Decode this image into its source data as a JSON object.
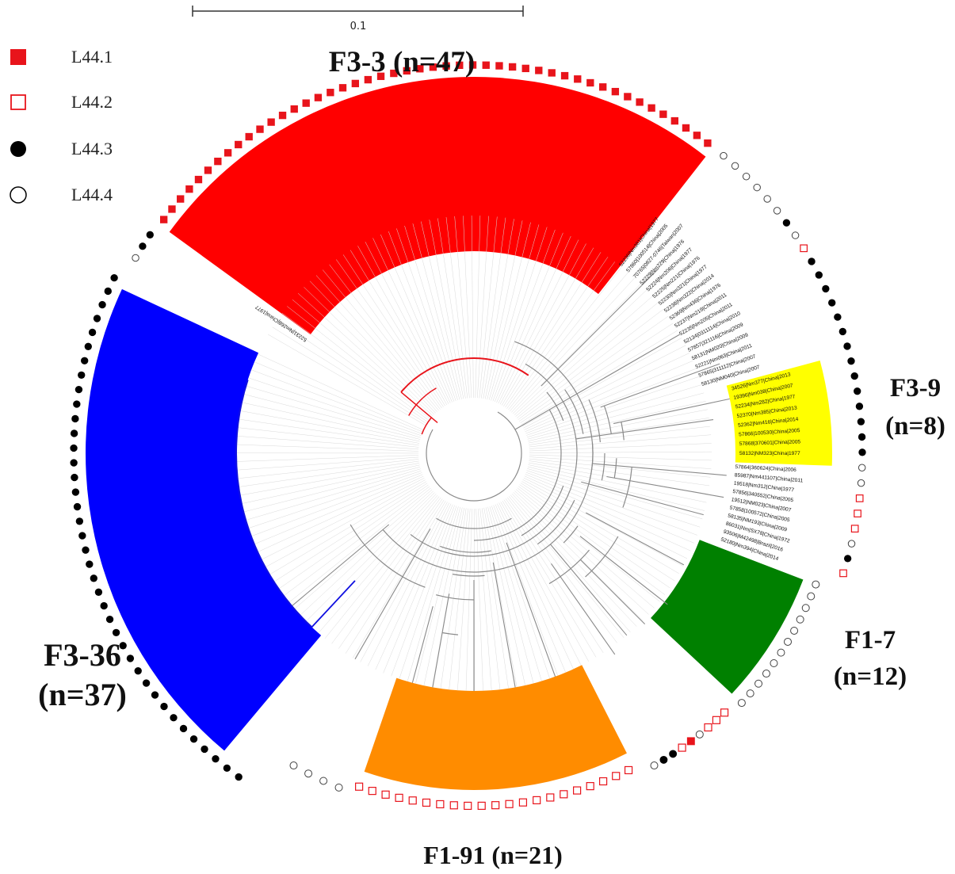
{
  "scale_bar": {
    "label": "0.1"
  },
  "legend": [
    {
      "label": "L44.1",
      "icon": "filled-square",
      "color": "#e8141b"
    },
    {
      "label": "L44.2",
      "icon": "hollow-square",
      "color": "#e8141b"
    },
    {
      "label": "L44.3",
      "icon": "filled-circle",
      "color": "#000000"
    },
    {
      "label": "L44.4",
      "icon": "hollow-circle",
      "color": "#000000"
    }
  ],
  "clades": [
    {
      "name": "F3-3",
      "count": "(n=47)",
      "color": "#ff0000"
    },
    {
      "name": "F3-9",
      "count": "(n=8)",
      "color": "#ffff00"
    },
    {
      "name": "F1-7",
      "count": "(n=12)",
      "color": "#008000"
    },
    {
      "name": "F1-91",
      "count": "(n=21)",
      "color": "#ff8c00"
    },
    {
      "name": "F3-36",
      "count": "(n=37)",
      "color": "#0000ff"
    }
  ],
  "tip_labels": {
    "upper_right": [
      "52236|Nm381|China|1977",
      "57860|100514|China|2005",
      "70765|0827-0746|Taiwan|2007",
      "52229|Nm229|China|1976",
      "52224|Nm206|China|1977",
      "52225|Nm221|China|1976",
      "52230|Nm321|China|1977",
      "52238|Nm322|China|2014",
      "52369|Nm436|China|1976",
      "52237|Nm219|China|2011",
      "52235|Nm205|China|2011",
      "52134|0311114|China|2010",
      "57857|321116|China|2009",
      "58131|NM020|China|2009",
      "52221|Nm063|China|2011",
      "57865|311112|China|2007",
      "58130|NM040|China|2007"
    ],
    "f3_9": [
      "34526|Nm377|China|2013",
      "19396|Nm038|China|2007",
      "52234|Nm282|China|1977",
      "52370|Nm385|China|2013",
      "52362|Nm416|China|2014",
      "57866|100530|China|2005",
      "57868|370601|China|2005",
      "58132|NM323|China|1977"
    ],
    "lower_right": [
      "57864|360624|China|2006",
      "85987|Nm441107|China|2011",
      "19518|Nm312|China|1977",
      "57856|340552|China|2005",
      "19512|NM023|China|2007",
      "57858|100572|China|2005",
      "58135|NM193|China|2009",
      "86031|Nm|SX78|China|1972",
      "93506|M42498|Brazil|2016",
      "52180|Nm394|China|2014"
    ],
    "f3_3_anchor": "52231|Nm268|China|1977"
  },
  "markers": {
    "top_arc": {
      "count": 47,
      "type": "filled-square"
    },
    "right_arc": [
      "hollow-circle",
      "hollow-circle",
      "hollow-circle",
      "hollow-circle",
      "hollow-circle",
      "hollow-circle",
      "filled-circle",
      "hollow-circle",
      "hollow-square",
      "filled-circle",
      "filled-circle",
      "filled-circle",
      "filled-circle",
      "filled-circle",
      "filled-circle",
      "filled-circle",
      "filled-circle",
      "filled-circle",
      "filled-circle",
      "filled-circle",
      "filled-circle",
      "filled-circle",
      "filled-circle",
      "hollow-circle",
      "hollow-circle",
      "hollow-square",
      "hollow-square",
      "hollow-square",
      "hollow-circle",
      "filled-circle",
      "hollow-square"
    ],
    "green_arc": {
      "count": 12,
      "type": "hollow-circle"
    },
    "lower_right_arc": [
      "hollow-square",
      "hollow-square",
      "hollow-square",
      "hollow-circle",
      "filled-square",
      "hollow-square",
      "filled-circle",
      "filled-circle",
      "hollow-circle"
    ],
    "bottom_arc": {
      "count": 21,
      "type": "hollow-square"
    },
    "bottom_left_arc": {
      "count": 4,
      "type": "hollow-circle"
    },
    "left_arc": {
      "count": 39,
      "type": "filled-circle"
    },
    "upper_left_arc": [
      "hollow-circle",
      "filled-circle",
      "filled-circle"
    ]
  }
}
